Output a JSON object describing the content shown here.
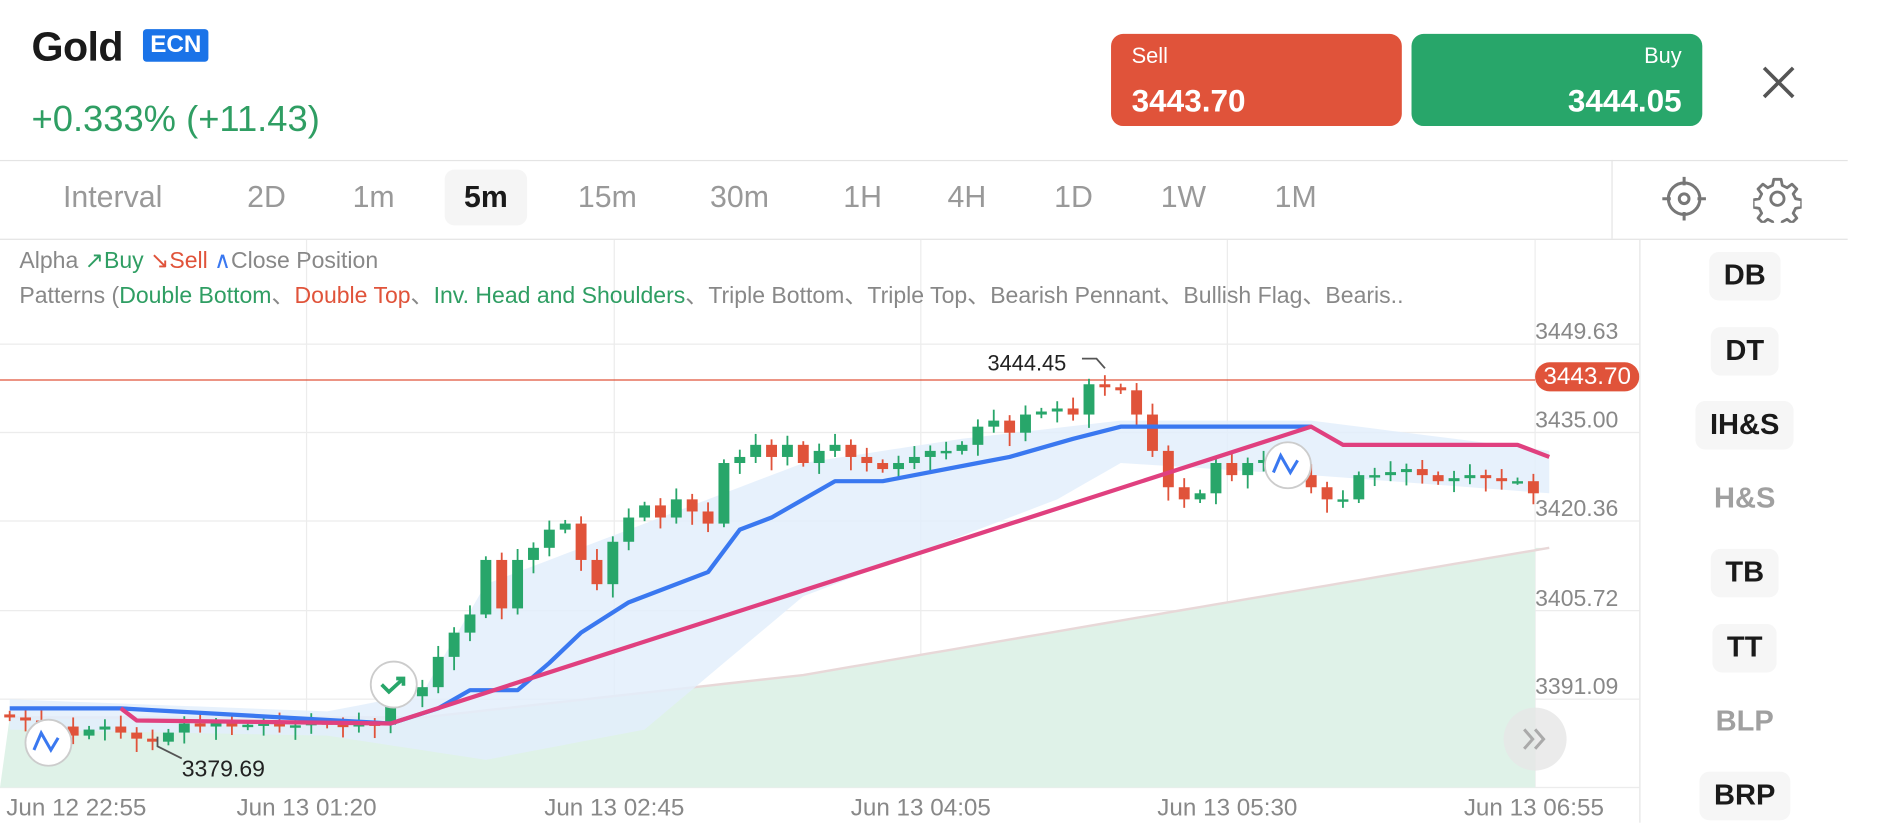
{
  "header": {
    "title": "Gold",
    "badge": "ECN",
    "change": "+0.333% (+11.43)",
    "sell": {
      "label": "Sell",
      "price": "3443.70"
    },
    "buy": {
      "label": "Buy",
      "price": "3444.05"
    },
    "close_icon": "close-icon"
  },
  "intervals": {
    "label": "Interval",
    "items": [
      "2D",
      "1m",
      "5m",
      "15m",
      "30m",
      "1H",
      "4H",
      "1D",
      "1W",
      "1M"
    ],
    "active": "5m"
  },
  "toolbar_icons": [
    "crosshair-icon",
    "gear-icon"
  ],
  "legend": {
    "alpha": "Alpha",
    "buy": "Buy",
    "sell": "Sell",
    "close": "Close Position",
    "patterns_prefix": "Patterns (",
    "patterns": [
      {
        "t": "Double Bottom",
        "c": "g"
      },
      {
        "t": "、",
        "c": ""
      },
      {
        "t": "Double Top",
        "c": "r"
      },
      {
        "t": "、",
        "c": ""
      },
      {
        "t": "Inv. Head and Shoulders",
        "c": "g"
      },
      {
        "t": "、Triple Bottom、Triple Top、Bearish Pennant、Bullish Flag、Bearis..",
        "c": ""
      }
    ]
  },
  "pattern_buttons": [
    {
      "label": "DB",
      "enabled": true
    },
    {
      "label": "DT",
      "enabled": true
    },
    {
      "label": "IH&S",
      "enabled": true
    },
    {
      "label": "H&S",
      "enabled": false
    },
    {
      "label": "TB",
      "enabled": true
    },
    {
      "label": "TT",
      "enabled": true
    },
    {
      "label": "BLP",
      "enabled": false
    },
    {
      "label": "BRP",
      "enabled": true
    }
  ],
  "colors": {
    "up": "#28a66a",
    "down": "#e0533a",
    "signal_line": "#3a78f0",
    "pink_line": "#e0407f",
    "band": "#e3eefc",
    "area": "#dff2e8"
  },
  "chart_data": {
    "type": "candlestick",
    "y_ticks": [
      "3449.63",
      "3435.00",
      "3420.36",
      "3405.72",
      "3391.09"
    ],
    "x_ticks": [
      "Jun 12 22:55",
      "Jun 13 01:20",
      "Jun 13 02:45",
      "Jun 13 04:05",
      "Jun 13 05:30",
      "Jun 13 06:55"
    ],
    "current_price": "3443.70",
    "high_label": "3444.45",
    "low_label": "3379.69",
    "closes": [
      3388,
      3387.5,
      3386,
      3386.5,
      3385,
      3386,
      3386.5,
      3385.5,
      3384.5,
      3384,
      3385.5,
      3387,
      3386.5,
      3387,
      3386.5,
      3386.8,
      3387,
      3386.5,
      3386.7,
      3387.2,
      3386.8,
      3386.5,
      3387,
      3386.8,
      3391,
      3391.5,
      3393,
      3398,
      3402,
      3405,
      3414,
      3406,
      3414,
      3416,
      3419,
      3420,
      3414,
      3410,
      3417,
      3421,
      3423,
      3421,
      3424,
      3422,
      3420,
      3430,
      3431,
      3433,
      3431,
      3433,
      3430,
      3432,
      3433,
      3431,
      3430,
      3429,
      3430,
      3431,
      3432,
      3432,
      3433,
      3436,
      3437,
      3435,
      3438,
      3438.5,
      3439,
      3438,
      3443,
      3442.5,
      3442,
      3438,
      3432,
      3426,
      3424,
      3425,
      3430,
      3428,
      3430,
      3430.5,
      3429,
      3428,
      3426,
      3424,
      3424,
      3428,
      3428,
      3428.5,
      3429,
      3428,
      3427,
      3427.5,
      3428,
      3427.5,
      3427,
      3427,
      3425
    ],
    "signal_line_blue": [
      [
        0,
        3389.5
      ],
      [
        7,
        3389.5
      ],
      [
        24,
        3387
      ],
      [
        27,
        3389.5
      ],
      [
        29,
        3392.5
      ],
      [
        32,
        3392.5
      ],
      [
        34,
        3397
      ],
      [
        36,
        3402
      ],
      [
        39,
        3407
      ],
      [
        44,
        3412
      ],
      [
        46,
        3419
      ],
      [
        48,
        3421
      ],
      [
        50,
        3424
      ],
      [
        52,
        3427
      ],
      [
        55,
        3427
      ],
      [
        61,
        3430
      ],
      [
        63,
        3431
      ],
      [
        67,
        3434
      ],
      [
        70,
        3436
      ],
      [
        82,
        3436
      ]
    ],
    "signal_line_pink": [
      [
        7,
        3389.5
      ],
      [
        8,
        3387.5
      ],
      [
        24,
        3387
      ],
      [
        82,
        3436
      ],
      [
        84,
        3433
      ],
      [
        95,
        3433
      ],
      [
        97,
        3431
      ]
    ],
    "band_upper": [
      [
        0,
        3391
      ],
      [
        20,
        3389
      ],
      [
        26,
        3392
      ],
      [
        30,
        3410
      ],
      [
        40,
        3420
      ],
      [
        50,
        3430
      ],
      [
        60,
        3434
      ],
      [
        70,
        3437
      ],
      [
        82,
        3437
      ],
      [
        97,
        3432
      ]
    ],
    "band_lower": [
      [
        0,
        3386
      ],
      [
        20,
        3385
      ],
      [
        30,
        3381
      ],
      [
        40,
        3386
      ],
      [
        50,
        3408
      ],
      [
        60,
        3418
      ],
      [
        66,
        3424
      ],
      [
        70,
        3430
      ],
      [
        82,
        3428
      ],
      [
        97,
        3425
      ]
    ],
    "area_top": [
      [
        0,
        3388
      ],
      [
        26,
        3388
      ],
      [
        50,
        3395
      ],
      [
        70,
        3404
      ],
      [
        97,
        3416
      ]
    ],
    "signals": [
      {
        "type": "close",
        "index": 2
      },
      {
        "type": "buy",
        "index": 24
      },
      {
        "type": "close",
        "index": 81
      }
    ]
  }
}
